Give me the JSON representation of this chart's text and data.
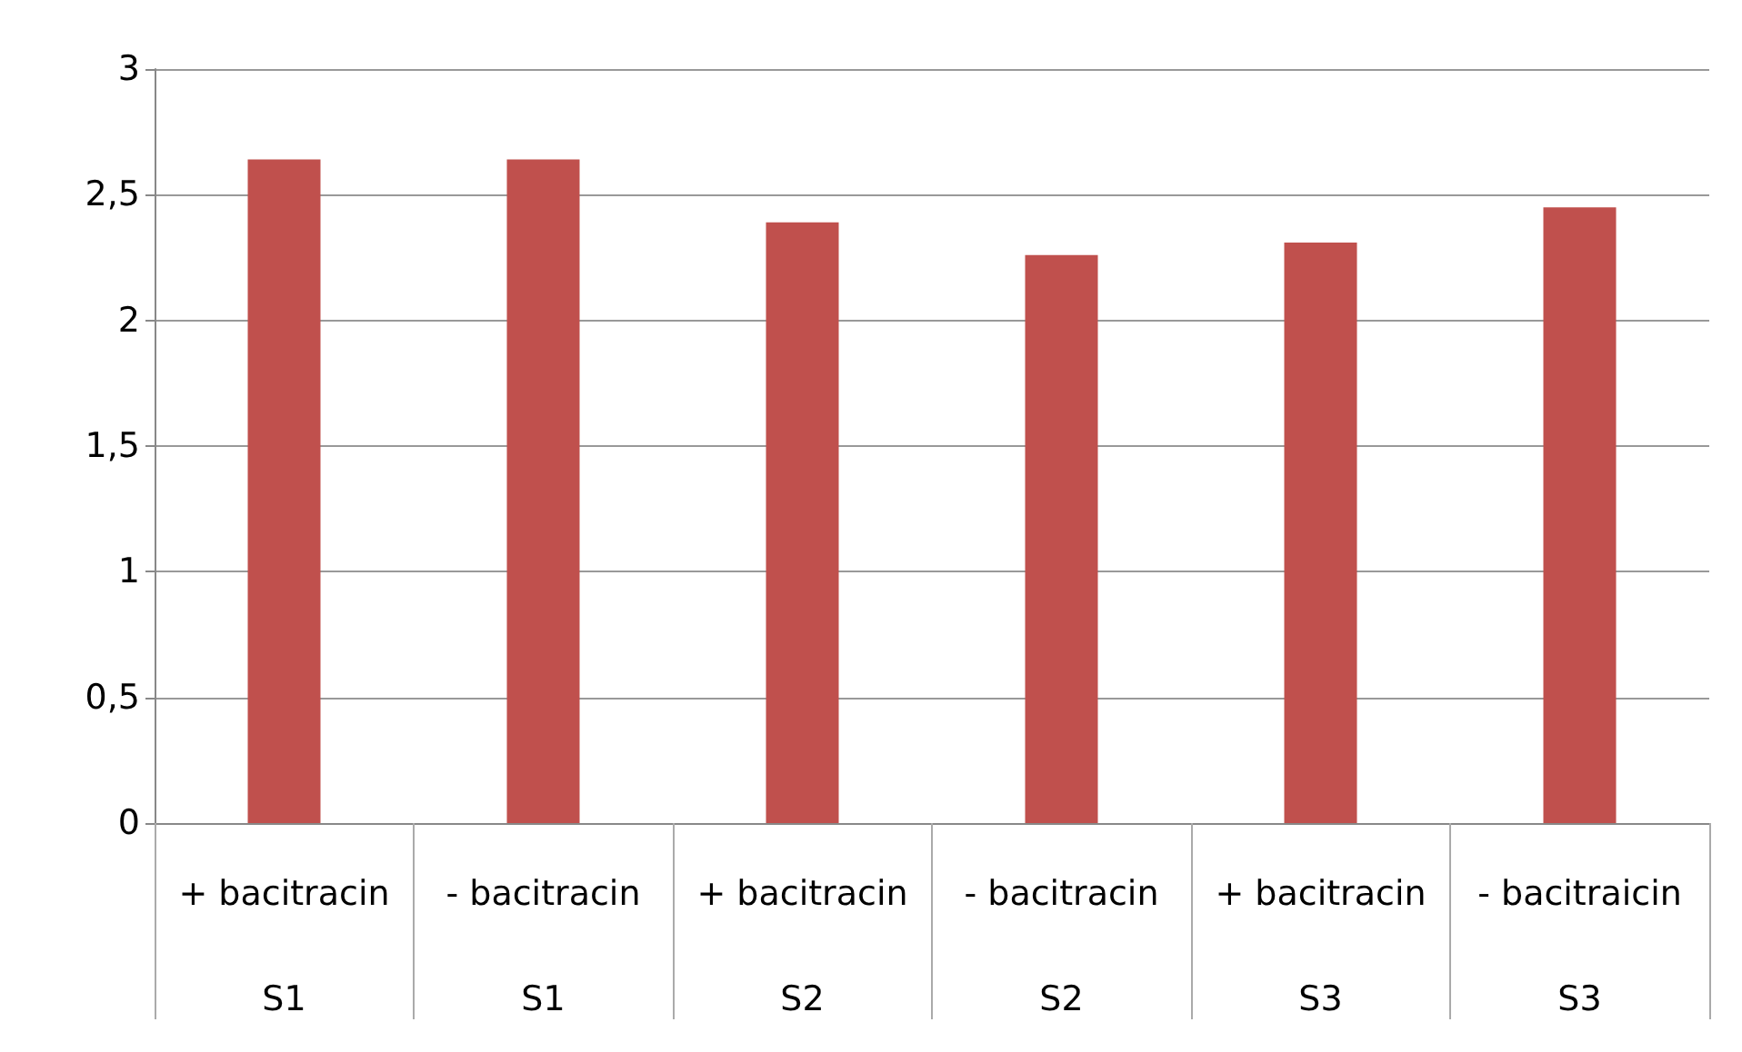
{
  "chart_data": {
    "type": "bar",
    "categories": [
      "+ bacitracin\nS1",
      "- bacitracin\nS1",
      "+ bacitracin\nS2",
      "- bacitracin\nS2",
      "+ bacitracin\nS3",
      "- bacitraicin\nS3"
    ],
    "values": [
      2.64,
      2.64,
      2.39,
      2.26,
      2.31,
      2.45
    ],
    "color": "#c0504d",
    "ylim": [
      0,
      3
    ],
    "yticks": [
      0,
      {
        "value": 0.5,
        "label": "0,5"
      },
      1,
      {
        "value": 1.5,
        "label": "1,5"
      },
      2,
      {
        "value": 2.5,
        "label": "2,5"
      },
      3
    ],
    "grid": "y"
  }
}
